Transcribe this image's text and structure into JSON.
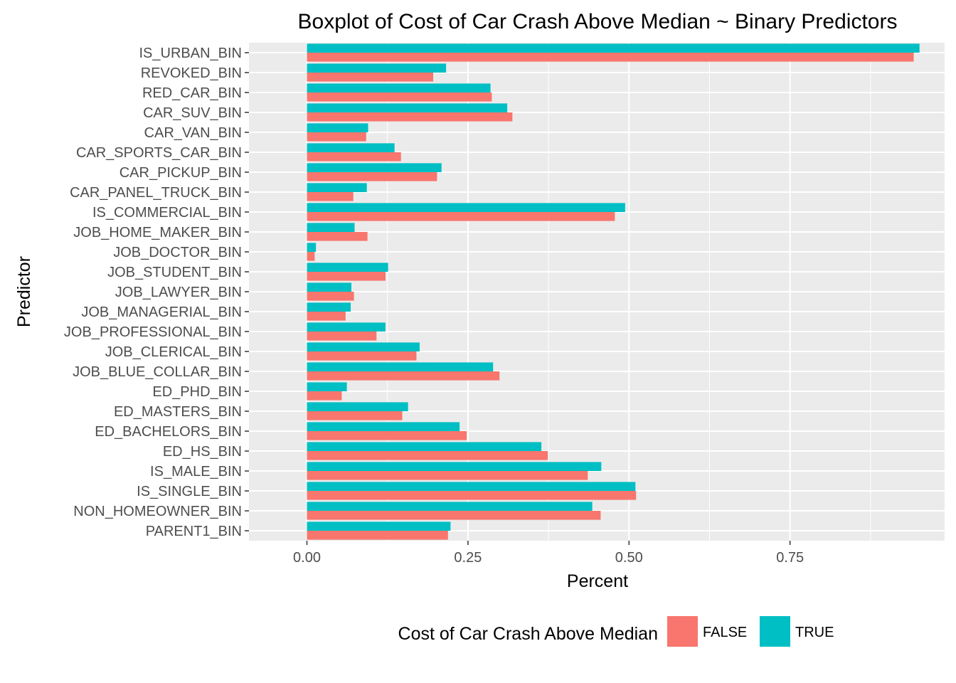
{
  "chart_data": {
    "type": "bar",
    "orientation": "horizontal",
    "title": "Boxplot of Cost of Car Crash Above Median ~ Binary Predictors",
    "xlabel": "Percent",
    "ylabel": "Predictor",
    "xlim": [
      -0.09,
      0.99
    ],
    "x_ticks": [
      0.0,
      0.25,
      0.5,
      0.75
    ],
    "x_tick_labels": [
      "0.00",
      "0.25",
      "0.50",
      "0.75"
    ],
    "grid": true,
    "legend": {
      "title": "Cost of Car Crash Above Median",
      "position": "bottom"
    },
    "categories": [
      "PARENT1_BIN",
      "NON_HOMEOWNER_BIN",
      "IS_SINGLE_BIN",
      "IS_MALE_BIN",
      "ED_HS_BIN",
      "ED_BACHELORS_BIN",
      "ED_MASTERS_BIN",
      "ED_PHD_BIN",
      "JOB_BLUE_COLLAR_BIN",
      "JOB_CLERICAL_BIN",
      "JOB_PROFESSIONAL_BIN",
      "JOB_MANAGERIAL_BIN",
      "JOB_LAWYER_BIN",
      "JOB_STUDENT_BIN",
      "JOB_DOCTOR_BIN",
      "JOB_HOME_MAKER_BIN",
      "IS_COMMERCIAL_BIN",
      "CAR_PANEL_TRUCK_BIN",
      "CAR_PICKUP_BIN",
      "CAR_SPORTS_CAR_BIN",
      "CAR_VAN_BIN",
      "CAR_SUV_BIN",
      "RED_CAR_BIN",
      "REVOKED_BIN",
      "IS_URBAN_BIN"
    ],
    "series": [
      {
        "name": "FALSE",
        "color": "#F8766D",
        "values": [
          0.219,
          0.456,
          0.511,
          0.436,
          0.374,
          0.248,
          0.148,
          0.054,
          0.299,
          0.17,
          0.108,
          0.06,
          0.073,
          0.122,
          0.012,
          0.094,
          0.478,
          0.072,
          0.202,
          0.146,
          0.092,
          0.319,
          0.287,
          0.196,
          0.942
        ]
      },
      {
        "name": "TRUE",
        "color": "#00BFC4",
        "values": [
          0.223,
          0.443,
          0.51,
          0.457,
          0.364,
          0.237,
          0.157,
          0.062,
          0.289,
          0.175,
          0.122,
          0.068,
          0.069,
          0.126,
          0.014,
          0.074,
          0.494,
          0.093,
          0.209,
          0.136,
          0.095,
          0.311,
          0.285,
          0.216,
          0.951
        ]
      }
    ]
  }
}
